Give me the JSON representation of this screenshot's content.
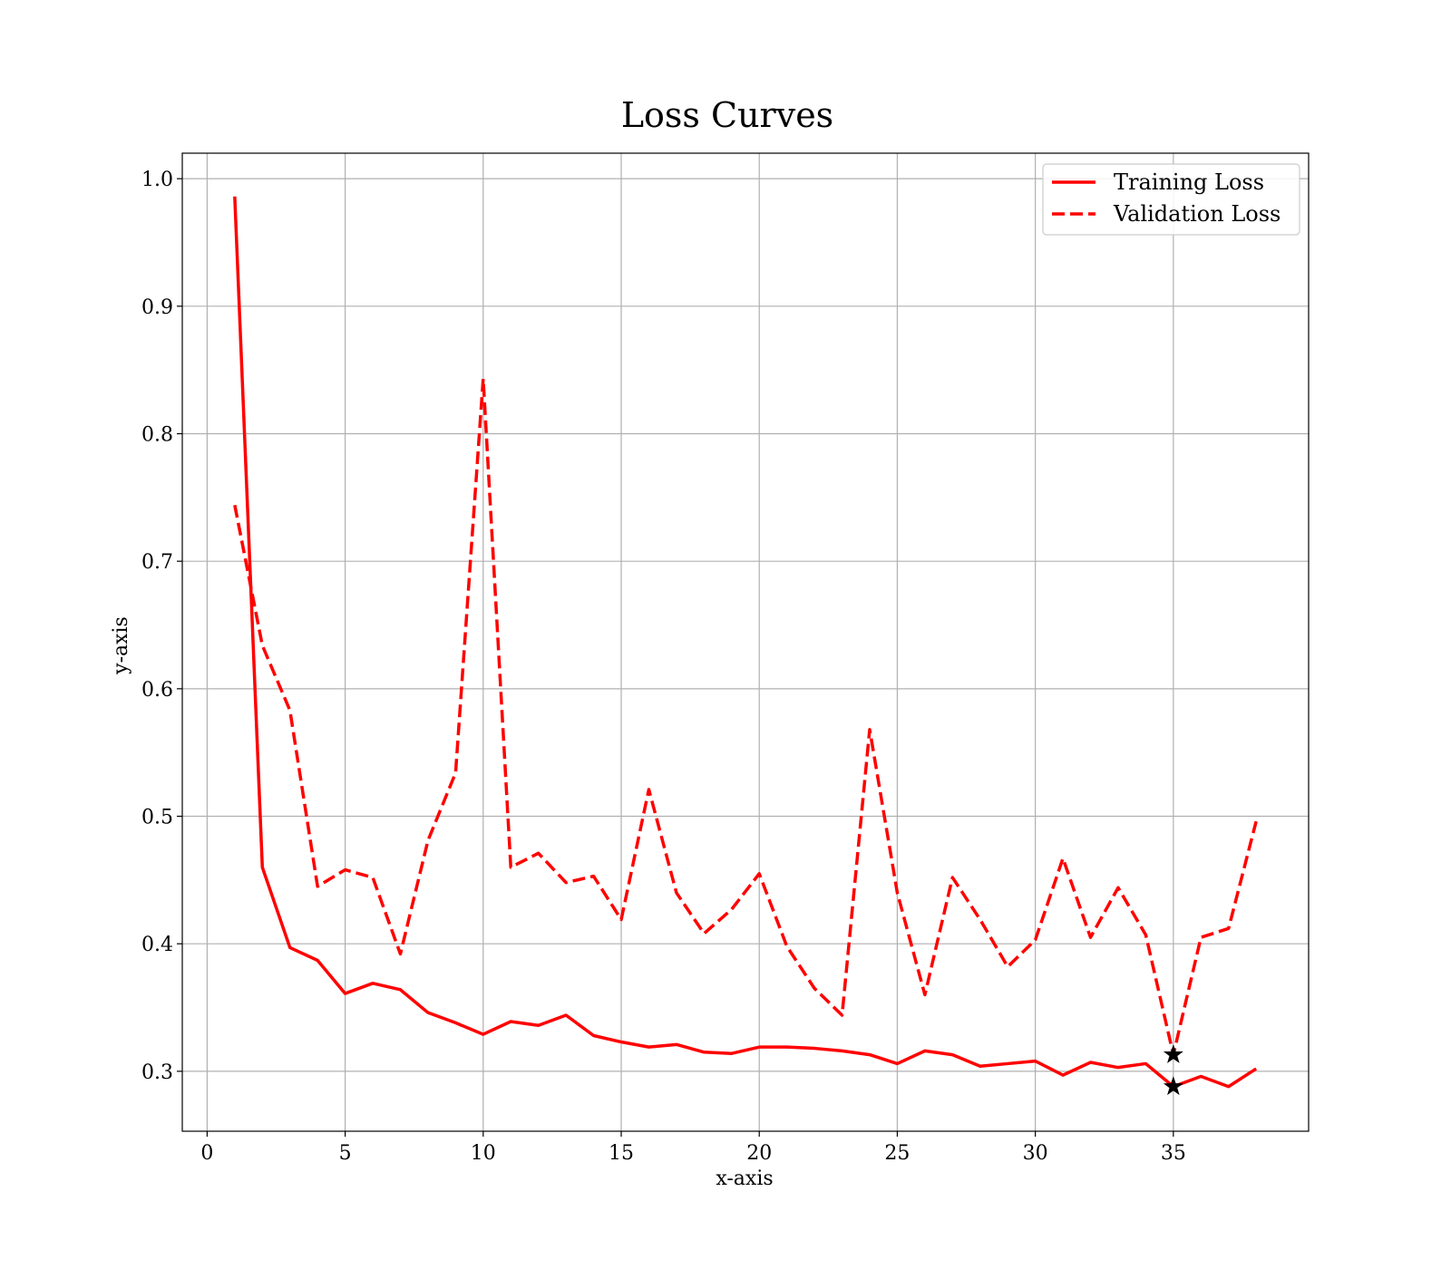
{
  "chart_data": {
    "type": "line",
    "title": "Loss Curves",
    "xlabel": "x-axis",
    "ylabel": "y-axis",
    "xlim": [
      -0.9,
      39.9
    ],
    "ylim": [
      0.253,
      1.02
    ],
    "xticks": [
      0,
      5,
      10,
      15,
      20,
      25,
      30,
      35
    ],
    "yticks": [
      0.3,
      0.4,
      0.5,
      0.6,
      0.7,
      0.8,
      0.9,
      1.0
    ],
    "ytick_labels": [
      "0.3",
      "0.4",
      "0.5",
      "0.6",
      "0.7",
      "0.8",
      "0.9",
      "1.0"
    ],
    "grid": true,
    "legend_position": "top-right",
    "x": [
      1,
      2,
      3,
      4,
      5,
      6,
      7,
      8,
      9,
      10,
      11,
      12,
      13,
      14,
      15,
      16,
      17,
      18,
      19,
      20,
      21,
      22,
      23,
      24,
      25,
      26,
      27,
      28,
      29,
      30,
      31,
      32,
      33,
      34,
      35,
      36,
      37,
      38
    ],
    "series": [
      {
        "name": "Training Loss",
        "color": "#ff0000",
        "style": "solid",
        "values": [
          0.986,
          0.46,
          0.397,
          0.387,
          0.361,
          0.369,
          0.364,
          0.346,
          0.338,
          0.329,
          0.339,
          0.336,
          0.344,
          0.328,
          0.323,
          0.319,
          0.321,
          0.315,
          0.314,
          0.319,
          0.319,
          0.318,
          0.316,
          0.313,
          0.306,
          0.316,
          0.313,
          0.304,
          0.306,
          0.308,
          0.297,
          0.307,
          0.303,
          0.306,
          0.288,
          0.296,
          0.288,
          0.302
        ]
      },
      {
        "name": "Validation Loss",
        "color": "#ff0000",
        "style": "dashed",
        "values": [
          0.744,
          0.634,
          0.583,
          0.445,
          0.458,
          0.452,
          0.392,
          0.481,
          0.534,
          0.843,
          0.46,
          0.471,
          0.448,
          0.453,
          0.419,
          0.521,
          0.44,
          0.408,
          0.427,
          0.455,
          0.398,
          0.365,
          0.344,
          0.568,
          0.44,
          0.36,
          0.452,
          0.419,
          0.382,
          0.403,
          0.467,
          0.405,
          0.444,
          0.407,
          0.313,
          0.405,
          0.412,
          0.496
        ]
      }
    ],
    "markers": [
      {
        "x": 35,
        "y": 0.288,
        "symbol": "star",
        "color": "#000000"
      },
      {
        "x": 35,
        "y": 0.313,
        "symbol": "star",
        "color": "#000000"
      }
    ]
  }
}
